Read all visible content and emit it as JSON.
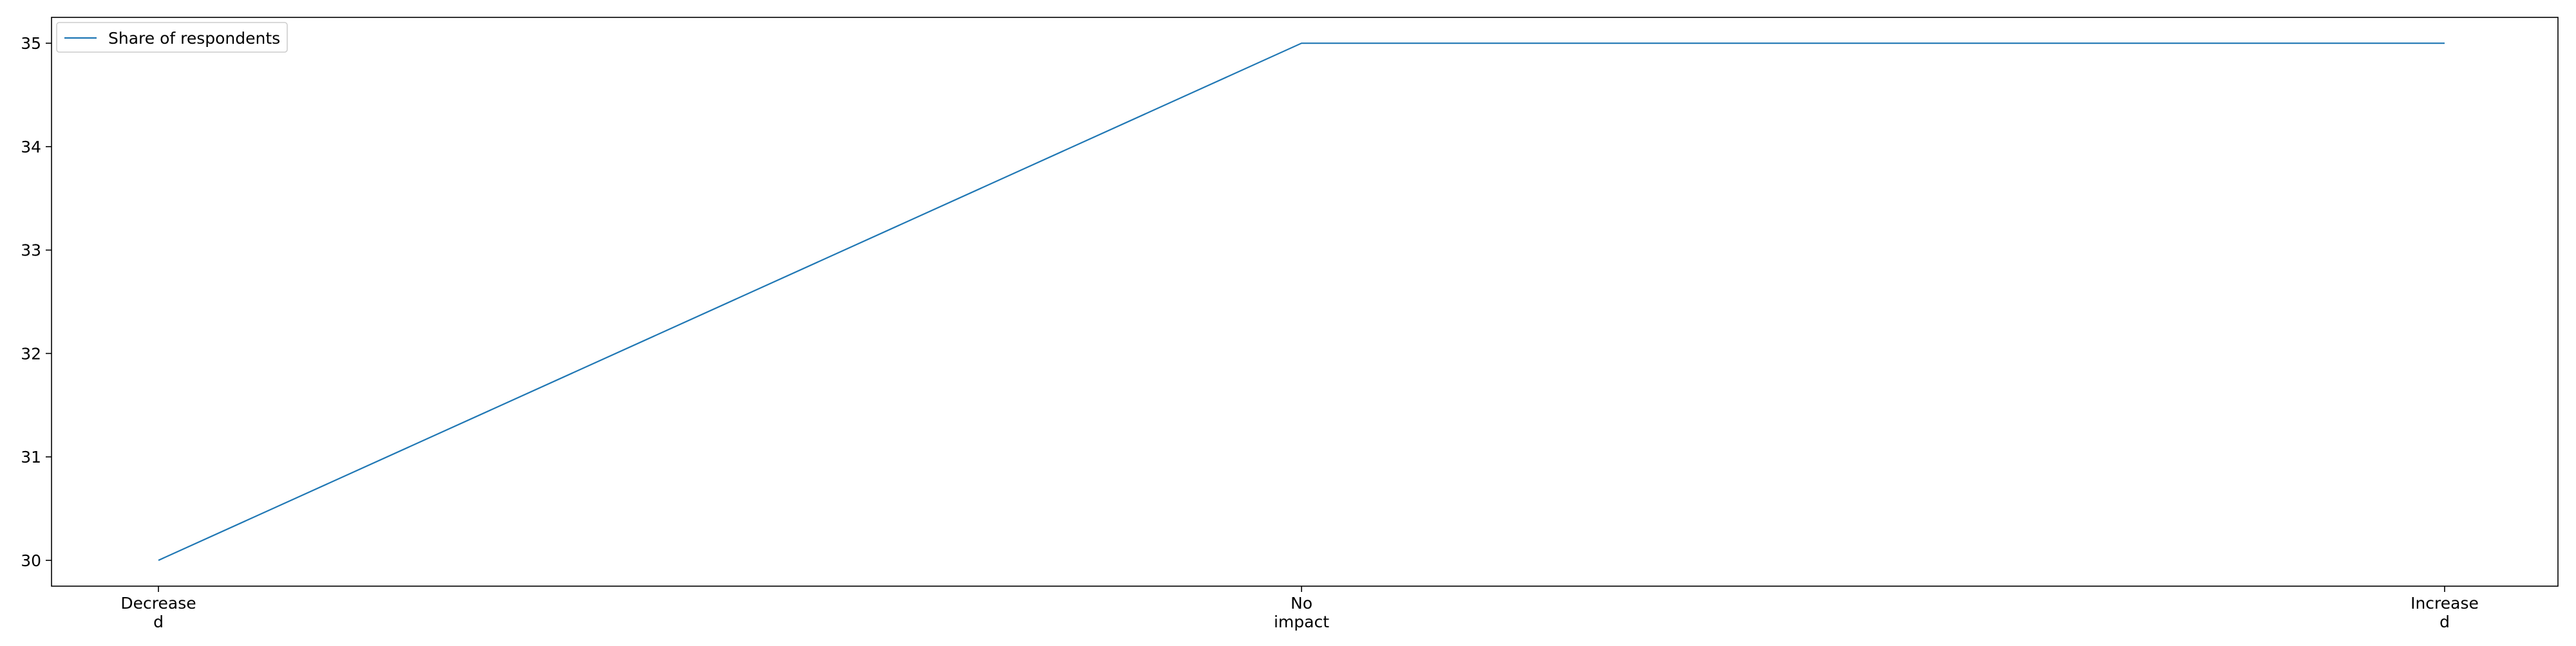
{
  "chart_data": {
    "type": "line",
    "title": "",
    "xlabel": "",
    "ylabel": "",
    "categories": [
      [
        "Decrease",
        "d"
      ],
      [
        "No",
        "impact"
      ],
      [
        "Increase",
        "d"
      ]
    ],
    "series": [
      {
        "name": "Share of respondents",
        "values": [
          30,
          35,
          35
        ],
        "color": "#1f77b4"
      }
    ],
    "ylim": [
      29.75,
      35.25
    ],
    "yticks": [
      30,
      31,
      32,
      33,
      34,
      35
    ],
    "grid": false,
    "legend": "top-left"
  }
}
